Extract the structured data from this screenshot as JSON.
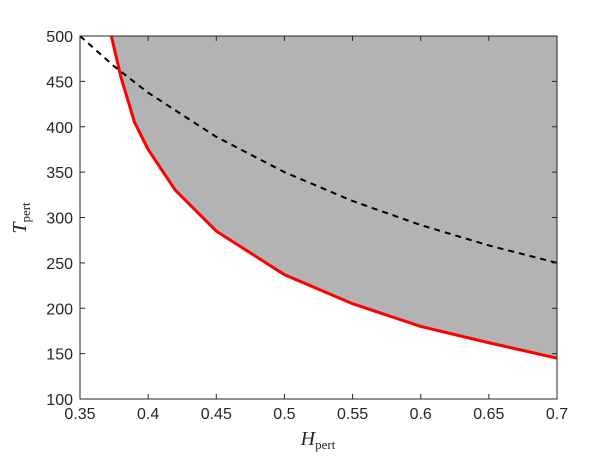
{
  "chart_data": {
    "type": "line",
    "x_label": {
      "main": "H",
      "sub": "pert"
    },
    "y_label": {
      "main": "T",
      "sub": "pert"
    },
    "xlim": [
      0.35,
      0.7
    ],
    "xticks": [
      0.35,
      0.4,
      0.45,
      0.5,
      0.55,
      0.6,
      0.65,
      0.7
    ],
    "ylim": [
      100,
      500
    ],
    "yticks": [
      100,
      150,
      200,
      250,
      300,
      350,
      400,
      450,
      500
    ],
    "region_color": "#b3b3b3",
    "series": [
      {
        "color": "#ff0000",
        "style": "solid",
        "fill_above": true,
        "x": [
          0.373,
          0.38,
          0.39,
          0.4,
          0.42,
          0.45,
          0.5,
          0.55,
          0.6,
          0.65,
          0.7
        ],
        "values": [
          500,
          455,
          405,
          375,
          330,
          285,
          237,
          205,
          180,
          162,
          145
        ]
      },
      {
        "color": "#000000",
        "style": "dashed",
        "fill_above": false,
        "x": [
          0.35,
          0.375,
          0.4,
          0.45,
          0.5,
          0.55,
          0.6,
          0.65,
          0.7
        ],
        "values": [
          500,
          466.7,
          437.5,
          388.9,
          350,
          318.2,
          291.7,
          269.2,
          250
        ]
      }
    ]
  }
}
